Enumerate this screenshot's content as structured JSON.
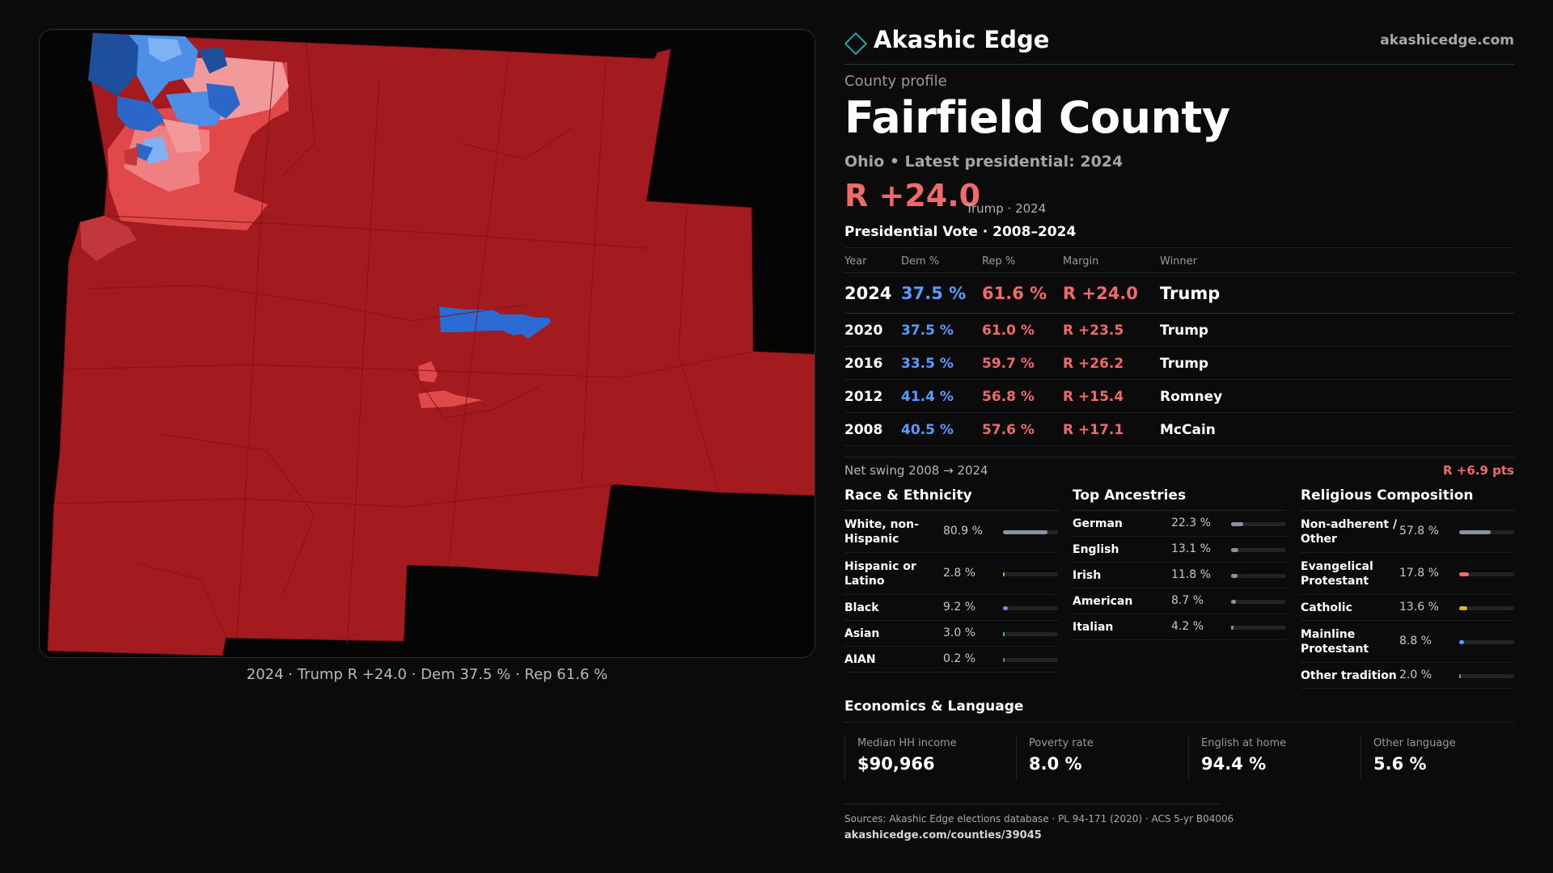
{
  "brand": {
    "name": "Akashic Edge",
    "url": "akashicedge.com"
  },
  "profile": {
    "eyebrow": "County profile",
    "title": "Fairfield County",
    "subtitle": "Ohio • Latest presidential: 2024",
    "margin": "R +24.0",
    "margin_note": "Trump · 2024"
  },
  "map": {
    "caption": "2024 · Trump R +24.0 · Dem 37.5 % · Rep 61.6 %"
  },
  "colors": {
    "rep": "#f06a6a",
    "dem": "#5a9bff",
    "rep_fill": "#a31a1f",
    "dem_fill": "#2a6bd6"
  },
  "vote": {
    "section_title": "Presidential Vote · 2008–2024",
    "headers": {
      "year": "Year",
      "dem": "Dem %",
      "rep": "Rep %",
      "margin": "Margin",
      "winner": "Winner"
    },
    "rows": [
      {
        "year": "2024",
        "dem": "37.5 %",
        "rep": "61.6 %",
        "margin": "R +24.0",
        "winner": "Trump"
      },
      {
        "year": "2020",
        "dem": "37.5 %",
        "rep": "61.0 %",
        "margin": "R +23.5",
        "winner": "Trump"
      },
      {
        "year": "2016",
        "dem": "33.5 %",
        "rep": "59.7 %",
        "margin": "R +26.2",
        "winner": "Trump"
      },
      {
        "year": "2012",
        "dem": "41.4 %",
        "rep": "56.8 %",
        "margin": "R +15.4",
        "winner": "Romney"
      },
      {
        "year": "2008",
        "dem": "40.5 %",
        "rep": "57.6 %",
        "margin": "R +17.1",
        "winner": "McCain"
      }
    ],
    "swing_label": "Net swing 2008 → 2024",
    "swing_value": "R +6.9 pts"
  },
  "race": {
    "title": "Race & Ethnicity",
    "items": [
      {
        "label": "White, non-Hispanic",
        "value": "80.9 %",
        "share": 0.809,
        "color": "#8a93a6"
      },
      {
        "label": "Hispanic or Latino",
        "value": "2.8 %",
        "share": 0.028,
        "color": "#e0a030"
      },
      {
        "label": "Black",
        "value": "9.2 %",
        "share": 0.092,
        "color": "#8a7de0"
      },
      {
        "label": "Asian",
        "value": "3.0 %",
        "share": 0.03,
        "color": "#3fc0a0"
      },
      {
        "label": "AIAN",
        "value": "0.2 %",
        "share": 0.002,
        "color": "#b07040"
      }
    ]
  },
  "ancestry": {
    "title": "Top Ancestries",
    "items": [
      {
        "label": "German",
        "value": "22.3 %",
        "share": 0.223,
        "color": "#8a93a6"
      },
      {
        "label": "English",
        "value": "13.1 %",
        "share": 0.131,
        "color": "#8a93a6"
      },
      {
        "label": "Irish",
        "value": "11.8 %",
        "share": 0.118,
        "color": "#8a93a6"
      },
      {
        "label": "American",
        "value": "8.7 %",
        "share": 0.087,
        "color": "#8a93a6"
      },
      {
        "label": "Italian",
        "value": "4.2 %",
        "share": 0.042,
        "color": "#8a93a6"
      }
    ]
  },
  "religion": {
    "title": "Religious Composition",
    "items": [
      {
        "label": "Non-adherent / Other",
        "value": "57.8 %",
        "share": 0.578,
        "color": "#8a93a6"
      },
      {
        "label": "Evangelical Protestant",
        "value": "17.8 %",
        "share": 0.178,
        "color": "#f06a6a"
      },
      {
        "label": "Catholic",
        "value": "13.6 %",
        "share": 0.136,
        "color": "#e0b030"
      },
      {
        "label": "Mainline Protestant",
        "value": "8.8 %",
        "share": 0.088,
        "color": "#5a9bff"
      },
      {
        "label": "Other tradition",
        "value": "2.0 %",
        "share": 0.02,
        "color": "#8a93a6"
      }
    ]
  },
  "economics": {
    "title": "Economics & Language",
    "items": [
      {
        "label": "Median HH income",
        "value": "$90,966"
      },
      {
        "label": "Poverty rate",
        "value": "8.0 %"
      },
      {
        "label": "English at home",
        "value": "94.4 %"
      },
      {
        "label": "Other language",
        "value": "5.6 %"
      }
    ]
  },
  "sources": {
    "text": "Sources: Akashic Edge elections database · PL 94-171 (2020) · ACS 5-yr B04006",
    "url": "akashicedge.com/counties/39045"
  }
}
